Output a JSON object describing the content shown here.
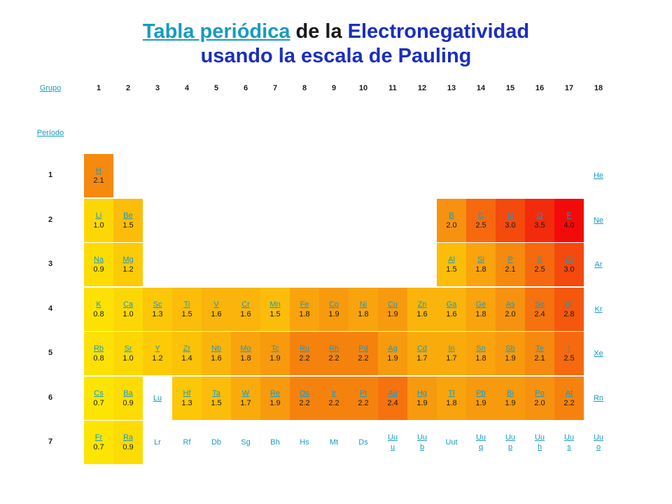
{
  "title": {
    "link": "Tabla periódica",
    "mid": " de la ",
    "blue": "Electronegatividad",
    "line2": "usando la escala de Pauling"
  },
  "grupo_label": "Grupo",
  "periodo_label": "Período",
  "groups": [
    "1",
    "2",
    "3",
    "4",
    "5",
    "6",
    "7",
    "8",
    "9",
    "10",
    "11",
    "12",
    "13",
    "14",
    "15",
    "16",
    "17",
    "18"
  ],
  "periods": [
    "1",
    "2",
    "3",
    "4",
    "5",
    "6",
    "7"
  ],
  "colors": {
    "link": "#179bc4",
    "title_blue": "#1a2fbe"
  },
  "elements": [
    {
      "p": 1,
      "g": 1,
      "sym": "H",
      "val": "2.1",
      "color": "#f58a0e"
    },
    {
      "p": 1,
      "g": 18,
      "sym": "He",
      "val": ""
    },
    {
      "p": 2,
      "g": 1,
      "sym": "Li",
      "val": "1.0",
      "color": "#fdd705"
    },
    {
      "p": 2,
      "g": 2,
      "sym": "Be",
      "val": "1.5",
      "color": "#fbbd0a"
    },
    {
      "p": 2,
      "g": 13,
      "sym": "B",
      "val": "2.0",
      "color": "#f79210"
    },
    {
      "p": 2,
      "g": 14,
      "sym": "C",
      "val": "2.5",
      "color": "#f6690e"
    },
    {
      "p": 2,
      "g": 15,
      "sym": "N",
      "val": "3.0",
      "color": "#f44a0d"
    },
    {
      "p": 2,
      "g": 16,
      "sym": "O",
      "val": "3.5",
      "color": "#f32a0b"
    },
    {
      "p": 2,
      "g": 17,
      "sym": "F",
      "val": "4.0",
      "color": "#f30b0b"
    },
    {
      "p": 2,
      "g": 18,
      "sym": "Ne",
      "val": ""
    },
    {
      "p": 3,
      "g": 1,
      "sym": "Na",
      "val": "0.9",
      "color": "#fddc04"
    },
    {
      "p": 3,
      "g": 2,
      "sym": "Mg",
      "val": "1.2",
      "color": "#fccb06"
    },
    {
      "p": 3,
      "g": 13,
      "sym": "Al",
      "val": "1.5",
      "color": "#fbbd0a"
    },
    {
      "p": 3,
      "g": 14,
      "sym": "Si",
      "val": "1.8",
      "color": "#f9a30d"
    },
    {
      "p": 3,
      "g": 15,
      "sym": "P",
      "val": "2.1",
      "color": "#f58a0e"
    },
    {
      "p": 3,
      "g": 16,
      "sym": "S",
      "val": "2.5",
      "color": "#f6690e"
    },
    {
      "p": 3,
      "g": 17,
      "sym": "Cl",
      "val": "3.0",
      "color": "#f44a0d"
    },
    {
      "p": 3,
      "g": 18,
      "sym": "Ar",
      "val": ""
    },
    {
      "p": 4,
      "g": 1,
      "sym": "K",
      "val": "0.8",
      "color": "#fde104"
    },
    {
      "p": 4,
      "g": 2,
      "sym": "Ca",
      "val": "1.0",
      "color": "#fdd705"
    },
    {
      "p": 4,
      "g": 3,
      "sym": "Sc",
      "val": "1.3",
      "color": "#fcc707"
    },
    {
      "p": 4,
      "g": 4,
      "sym": "Ti",
      "val": "1.5",
      "color": "#fbbd0a"
    },
    {
      "p": 4,
      "g": 5,
      "sym": "V",
      "val": "1.6",
      "color": "#fab40b"
    },
    {
      "p": 4,
      "g": 6,
      "sym": "Cr",
      "val": "1.6",
      "color": "#fab40b"
    },
    {
      "p": 4,
      "g": 7,
      "sym": "Mn",
      "val": "1.5",
      "color": "#fbbd0a"
    },
    {
      "p": 4,
      "g": 8,
      "sym": "Fe",
      "val": "1.8",
      "color": "#f9a30d"
    },
    {
      "p": 4,
      "g": 9,
      "sym": "Co",
      "val": "1.9",
      "color": "#f89a0e"
    },
    {
      "p": 4,
      "g": 10,
      "sym": "Ni",
      "val": "1.8",
      "color": "#f9a30d"
    },
    {
      "p": 4,
      "g": 11,
      "sym": "Cu",
      "val": "1.9",
      "color": "#f89a0e"
    },
    {
      "p": 4,
      "g": 12,
      "sym": "Zn",
      "val": "1.6",
      "color": "#fab40b"
    },
    {
      "p": 4,
      "g": 13,
      "sym": "Ga",
      "val": "1.6",
      "color": "#fab40b"
    },
    {
      "p": 4,
      "g": 14,
      "sym": "Ge",
      "val": "1.8",
      "color": "#f9a30d"
    },
    {
      "p": 4,
      "g": 15,
      "sym": "As",
      "val": "2.0",
      "color": "#f79210"
    },
    {
      "p": 4,
      "g": 16,
      "sym": "Se",
      "val": "2.4",
      "color": "#f6720e"
    },
    {
      "p": 4,
      "g": 17,
      "sym": "Br",
      "val": "2.8",
      "color": "#f5570d"
    },
    {
      "p": 4,
      "g": 18,
      "sym": "Kr",
      "val": ""
    },
    {
      "p": 5,
      "g": 1,
      "sym": "Rb",
      "val": "0.8",
      "color": "#fde104"
    },
    {
      "p": 5,
      "g": 2,
      "sym": "Sr",
      "val": "1.0",
      "color": "#fdd705"
    },
    {
      "p": 5,
      "g": 3,
      "sym": "Y",
      "val": "1.2",
      "color": "#fccb06"
    },
    {
      "p": 5,
      "g": 4,
      "sym": "Zr",
      "val": "1.4",
      "color": "#fbc208"
    },
    {
      "p": 5,
      "g": 5,
      "sym": "Nb",
      "val": "1.6",
      "color": "#fab40b"
    },
    {
      "p": 5,
      "g": 6,
      "sym": "Mo",
      "val": "1.8",
      "color": "#f9a30d"
    },
    {
      "p": 5,
      "g": 7,
      "sym": "Tc",
      "val": "1.9",
      "color": "#f89a0e"
    },
    {
      "p": 5,
      "g": 8,
      "sym": "Ru",
      "val": "2.2",
      "color": "#f6820e"
    },
    {
      "p": 5,
      "g": 9,
      "sym": "Rh",
      "val": "2.2",
      "color": "#f6820e"
    },
    {
      "p": 5,
      "g": 10,
      "sym": "Pd",
      "val": "2.2",
      "color": "#f6820e"
    },
    {
      "p": 5,
      "g": 11,
      "sym": "Ag",
      "val": "1.9",
      "color": "#f89a0e"
    },
    {
      "p": 5,
      "g": 12,
      "sym": "Cd",
      "val": "1.7",
      "color": "#f9ab0c"
    },
    {
      "p": 5,
      "g": 13,
      "sym": "In",
      "val": "1.7",
      "color": "#f9ab0c"
    },
    {
      "p": 5,
      "g": 14,
      "sym": "Sn",
      "val": "1.8",
      "color": "#f9a30d"
    },
    {
      "p": 5,
      "g": 15,
      "sym": "Sb",
      "val": "1.9",
      "color": "#f89a0e"
    },
    {
      "p": 5,
      "g": 16,
      "sym": "Te",
      "val": "2.1",
      "color": "#f58a0e"
    },
    {
      "p": 5,
      "g": 17,
      "sym": "I",
      "val": "2.5",
      "color": "#f6690e"
    },
    {
      "p": 5,
      "g": 18,
      "sym": "Xe",
      "val": ""
    },
    {
      "p": 6,
      "g": 1,
      "sym": "Cs",
      "val": "0.7",
      "color": "#fde503"
    },
    {
      "p": 6,
      "g": 2,
      "sym": "Ba",
      "val": "0.9",
      "color": "#fddc04"
    },
    {
      "p": 6,
      "g": 3,
      "sym": "Lu",
      "val": ""
    },
    {
      "p": 6,
      "g": 4,
      "sym": "Hf",
      "val": "1.3",
      "color": "#fcc707"
    },
    {
      "p": 6,
      "g": 5,
      "sym": "Ta",
      "val": "1.5",
      "color": "#fbbd0a"
    },
    {
      "p": 6,
      "g": 6,
      "sym": "W",
      "val": "1.7",
      "color": "#f9ab0c"
    },
    {
      "p": 6,
      "g": 7,
      "sym": "Re",
      "val": "1.9",
      "color": "#f89a0e"
    },
    {
      "p": 6,
      "g": 8,
      "sym": "Os",
      "val": "2.2",
      "color": "#f6820e"
    },
    {
      "p": 6,
      "g": 9,
      "sym": "Ir",
      "val": "2.2",
      "color": "#f6820e"
    },
    {
      "p": 6,
      "g": 10,
      "sym": "Pt",
      "val": "2.2",
      "color": "#f6820e"
    },
    {
      "p": 6,
      "g": 11,
      "sym": "Au",
      "val": "2.4",
      "color": "#f6720e"
    },
    {
      "p": 6,
      "g": 12,
      "sym": "Hg",
      "val": "1.9",
      "color": "#f89a0e"
    },
    {
      "p": 6,
      "g": 13,
      "sym": "Tl",
      "val": "1.8",
      "color": "#f9a30d"
    },
    {
      "p": 6,
      "g": 14,
      "sym": "Pb",
      "val": "1.9",
      "color": "#f89a0e"
    },
    {
      "p": 6,
      "g": 15,
      "sym": "Bi",
      "val": "1.9",
      "color": "#f89a0e"
    },
    {
      "p": 6,
      "g": 16,
      "sym": "Po",
      "val": "2.0",
      "color": "#f79210"
    },
    {
      "p": 6,
      "g": 17,
      "sym": "At",
      "val": "2.2",
      "color": "#f6820e"
    },
    {
      "p": 6,
      "g": 18,
      "sym": "Rn",
      "val": ""
    },
    {
      "p": 7,
      "g": 1,
      "sym": "Fr",
      "val": "0.7",
      "color": "#fde503"
    },
    {
      "p": 7,
      "g": 2,
      "sym": "Ra",
      "val": "0.9",
      "color": "#fddc04"
    },
    {
      "p": 7,
      "g": 3,
      "sym": "Lr",
      "val": "",
      "plain": true
    },
    {
      "p": 7,
      "g": 4,
      "sym": "Rf",
      "val": "",
      "plain": true
    },
    {
      "p": 7,
      "g": 5,
      "sym": "Db",
      "val": "",
      "plain": true
    },
    {
      "p": 7,
      "g": 6,
      "sym": "Sg",
      "val": "",
      "plain": true
    },
    {
      "p": 7,
      "g": 7,
      "sym": "Bh",
      "val": "",
      "plain": true
    },
    {
      "p": 7,
      "g": 8,
      "sym": "Hs",
      "val": "",
      "plain": true
    },
    {
      "p": 7,
      "g": 9,
      "sym": "Mt",
      "val": "",
      "plain": true
    },
    {
      "p": 7,
      "g": 10,
      "sym": "Ds",
      "val": "",
      "plain": true
    },
    {
      "p": 7,
      "g": 11,
      "sym": "Uu",
      "sym2": "u",
      "val": ""
    },
    {
      "p": 7,
      "g": 12,
      "sym": "Uu",
      "sym2": "b",
      "val": ""
    },
    {
      "p": 7,
      "g": 13,
      "sym": "Uut",
      "val": "",
      "plain": true
    },
    {
      "p": 7,
      "g": 14,
      "sym": "Uu",
      "sym2": "q",
      "val": ""
    },
    {
      "p": 7,
      "g": 15,
      "sym": "Uu",
      "sym2": "p",
      "val": ""
    },
    {
      "p": 7,
      "g": 16,
      "sym": "Uu",
      "sym2": "h",
      "val": ""
    },
    {
      "p": 7,
      "g": 17,
      "sym": "Uu",
      "sym2": "s",
      "val": ""
    },
    {
      "p": 7,
      "g": 18,
      "sym": "Uu",
      "sym2": "o",
      "val": ""
    }
  ]
}
